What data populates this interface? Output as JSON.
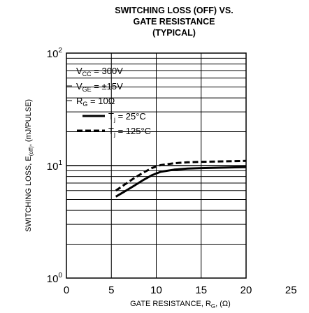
{
  "chart_data": {
    "type": "line",
    "title_lines": [
      "SWITCHING LOSS (OFF) VS.",
      "GATE RESISTANCE",
      "(TYPICAL)"
    ],
    "xlabel": "GATE RESISTANCE, R",
    "xlabel_sub": "G",
    "xlabel_tail": ", (Ω)",
    "ylabel": "SWITCHING LOSS, E",
    "ylabel_sub": "(off)",
    "ylabel_tail": ", (mJ/PULSE)",
    "xlim": [
      0,
      25
    ],
    "ylim": [
      1,
      100
    ],
    "y_scale": "log",
    "x_ticks": [
      "0",
      "5",
      "10",
      "15",
      "20",
      "25"
    ],
    "y_tick_base": "10",
    "y_tick_exponents": [
      "0",
      "1",
      "2"
    ],
    "grid": true,
    "legend": {
      "conditions": [
        {
          "main": "V",
          "sub": "CC",
          "tail": " = 300V"
        },
        {
          "main": "V",
          "sub": "GE",
          "tail": " = ±15V"
        },
        {
          "main": "R",
          "sub": "G",
          "tail": " = 10Ω"
        }
      ],
      "placement": "top-left"
    },
    "series": [
      {
        "name_main": "T",
        "name_sub": "j",
        "name_tail": " = 25°C",
        "style": "solid",
        "x": [
          5.5,
          6.5,
          7.5,
          8.5,
          9.5,
          10.5,
          12,
          13.5,
          15,
          17.5,
          20
        ],
        "y": [
          5.3,
          5.9,
          6.6,
          7.4,
          8.2,
          8.8,
          9.2,
          9.4,
          9.5,
          9.6,
          9.7
        ]
      },
      {
        "name_main": "T",
        "name_sub": "j",
        "name_tail": " = 125°C",
        "style": "dashed",
        "x": [
          5.5,
          6.5,
          7.5,
          8.5,
          9.5,
          10.5,
          12,
          13.5,
          15,
          17.5,
          20
        ],
        "y": [
          6.0,
          6.8,
          7.7,
          8.6,
          9.5,
          10.1,
          10.5,
          10.7,
          10.8,
          10.9,
          11.0
        ]
      }
    ]
  }
}
